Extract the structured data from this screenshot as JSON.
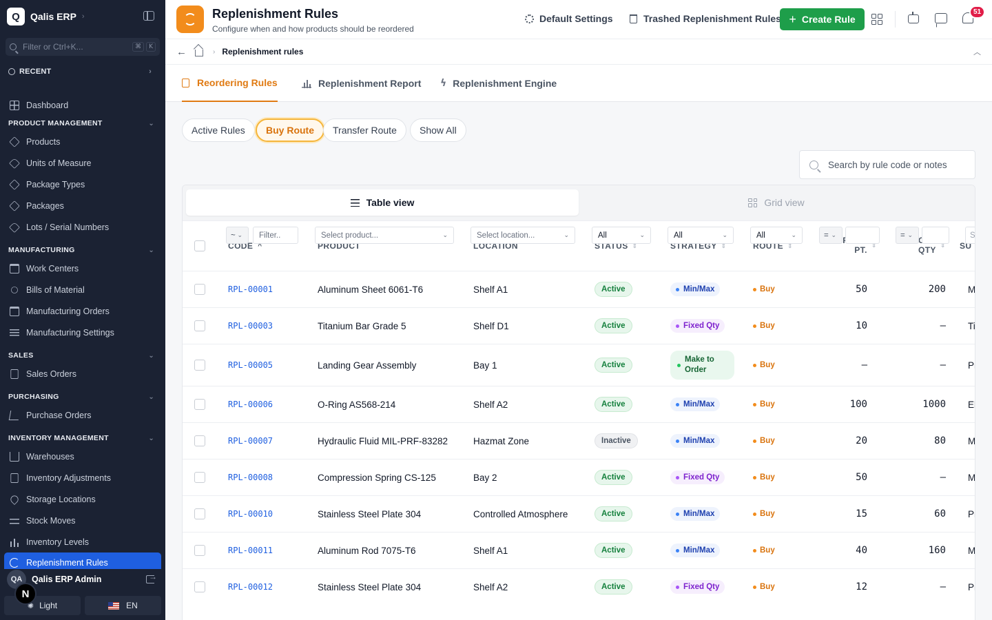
{
  "sidebar": {
    "brand_logo": "Q",
    "brand_name": "Qalis ERP",
    "filter_placeholder": "Filter or Ctrl+K...",
    "kbd_1": "⌘",
    "kbd_2": "K",
    "recent_label": "RECENT",
    "dashboard": "Dashboard",
    "sections": {
      "product": "PRODUCT MANAGEMENT",
      "manufacturing": "MANUFACTURING",
      "sales": "SALES",
      "purchasing": "PURCHASING",
      "inventory": "INVENTORY MANAGEMENT"
    },
    "items": {
      "products": "Products",
      "uom": "Units of Measure",
      "package_types": "Package Types",
      "packages": "Packages",
      "lots": "Lots / Serial Numbers",
      "work_centers": "Work Centers",
      "bom": "Bills of Material",
      "mo": "Manufacturing Orders",
      "mfg_settings": "Manufacturing Settings",
      "sales_orders": "Sales Orders",
      "purchase_orders": "Purchase Orders",
      "warehouses": "Warehouses",
      "adjustments": "Inventory Adjustments",
      "storage": "Storage Locations",
      "stock_moves": "Stock Moves",
      "levels": "Inventory Levels",
      "replenishment": "Replenishment Rules"
    },
    "user_initials": "QA",
    "user_name": "Qalis ERP Admin",
    "fab_letter": "N",
    "theme_label": "Light",
    "lang_label": "EN"
  },
  "header": {
    "title": "Replenishment Rules",
    "subtitle": "Configure when and how products should be reordered",
    "default_settings": "Default Settings",
    "trashed": "Trashed Replenishment Rules",
    "create": "Create Rule",
    "notifications": "51"
  },
  "breadcrumb": {
    "current": "Replenishment rules"
  },
  "tabs": {
    "reordering": "Reordering Rules",
    "report": "Replenishment Report",
    "engine": "Replenishment Engine"
  },
  "filters": {
    "active_rules": "Active Rules",
    "buy_route": "Buy Route",
    "transfer_route": "Transfer Route",
    "show_all": "Show All"
  },
  "search": {
    "placeholder": "Search by rule code or notes"
  },
  "views": {
    "table": "Table view",
    "grid": "Grid view"
  },
  "columns": {
    "code": "CODE",
    "product": "PRODUCT",
    "location": "LOCATION",
    "status": "STATUS",
    "strategy": "STRATEGY",
    "route": "ROUTE",
    "reorder_1": "REORDER",
    "reorder_2": "PT.",
    "target_1": "TARGET",
    "target_2": "QTY",
    "next": "SU"
  },
  "column_filters": {
    "code_op": "~",
    "code_placeholder": "Filter..",
    "product_placeholder": "Select product...",
    "location_placeholder": "Select location...",
    "status": "All",
    "strategy": "All",
    "route": "All",
    "reorder_op": "=",
    "target_op": "=",
    "next_partial": "S"
  },
  "rows": [
    {
      "code": "RPL-00001",
      "product": "Aluminum Sheet 6061-T6",
      "location": "Shelf A1",
      "status": "Active",
      "strategy": "Min/Max",
      "route": "Buy",
      "reorder": "50",
      "target": "200",
      "next": "M"
    },
    {
      "code": "RPL-00003",
      "product": "Titanium Bar Grade 5",
      "location": "Shelf D1",
      "status": "Active",
      "strategy": "Fixed Qty",
      "route": "Buy",
      "reorder": "10",
      "target": "–",
      "next": "Ti"
    },
    {
      "code": "RPL-00005",
      "product": "Landing Gear Assembly",
      "location": "Bay 1",
      "status": "Active",
      "strategy": "Make to Order",
      "route": "Buy",
      "reorder": "–",
      "target": "–",
      "next": "Pr"
    },
    {
      "code": "RPL-00006",
      "product": "O-Ring AS568-214",
      "location": "Shelf A2",
      "status": "Active",
      "strategy": "Min/Max",
      "route": "Buy",
      "reorder": "100",
      "target": "1000",
      "next": "El"
    },
    {
      "code": "RPL-00007",
      "product": "Hydraulic Fluid MIL-PRF-83282",
      "location": "Hazmat Zone",
      "status": "Inactive",
      "strategy": "Min/Max",
      "route": "Buy",
      "reorder": "20",
      "target": "80",
      "next": "M"
    },
    {
      "code": "RPL-00008",
      "product": "Compression Spring CS-125",
      "location": "Bay 2",
      "status": "Active",
      "strategy": "Fixed Qty",
      "route": "Buy",
      "reorder": "50",
      "target": "–",
      "next": "M"
    },
    {
      "code": "RPL-00010",
      "product": "Stainless Steel Plate 304",
      "location": "Controlled Atmosphere",
      "status": "Active",
      "strategy": "Min/Max",
      "route": "Buy",
      "reorder": "15",
      "target": "60",
      "next": "Pr"
    },
    {
      "code": "RPL-00011",
      "product": "Aluminum Rod 7075-T6",
      "location": "Shelf A1",
      "status": "Active",
      "strategy": "Min/Max",
      "route": "Buy",
      "reorder": "40",
      "target": "160",
      "next": "M"
    },
    {
      "code": "RPL-00012",
      "product": "Stainless Steel Plate 304",
      "location": "Shelf A2",
      "status": "Active",
      "strategy": "Fixed Qty",
      "route": "Buy",
      "reorder": "12",
      "target": "–",
      "next": "Pr"
    }
  ]
}
